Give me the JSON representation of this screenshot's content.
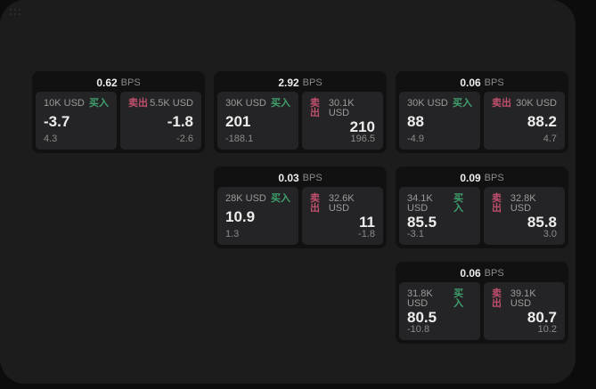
{
  "labels": {
    "bps": "BPS",
    "buy": "买入",
    "sell": "卖出"
  },
  "colors": {
    "page_bg": "#0c0c0c",
    "panel_bg": "#1c1c1d",
    "card_bg": "#111112",
    "subpanel_bg": "#242426",
    "buy_color": "#3fa06c",
    "sell_color": "#c04f6c",
    "value_text": "#ededed",
    "muted_text": "#8b8b8b",
    "label_text": "#9b9b9b"
  },
  "cards": [
    {
      "bps_value": "0.62",
      "buy": {
        "size": "10K USD",
        "value": "-3.7",
        "sub": "4.3"
      },
      "sell": {
        "size": "5.5K USD",
        "value": "-1.8",
        "sub": "-2.6"
      }
    },
    {
      "bps_value": "2.92",
      "buy": {
        "size": "30K USD",
        "value": "201",
        "sub": "-188.1"
      },
      "sell": {
        "size": "30.1K USD",
        "value": "210",
        "sub": "196.5"
      }
    },
    {
      "bps_value": "0.06",
      "buy": {
        "size": "30K USD",
        "value": "88",
        "sub": "-4.9"
      },
      "sell": {
        "size": "30K USD",
        "value": "88.2",
        "sub": "4.7"
      }
    },
    {
      "bps_value": "0.03",
      "buy": {
        "size": "28K USD",
        "value": "10.9",
        "sub": "1.3"
      },
      "sell": {
        "size": "32.6K USD",
        "value": "11",
        "sub": "-1.8"
      }
    },
    {
      "bps_value": "0.09",
      "buy": {
        "size": "34.1K USD",
        "value": "85.5",
        "sub": "-3.1"
      },
      "sell": {
        "size": "32.8K USD",
        "value": "85.8",
        "sub": "3.0"
      }
    },
    {
      "bps_value": "0.06",
      "buy": {
        "size": "31.8K USD",
        "value": "80.5",
        "sub": "-10.8"
      },
      "sell": {
        "size": "39.1K USD",
        "value": "80.7",
        "sub": "10.2"
      }
    }
  ]
}
